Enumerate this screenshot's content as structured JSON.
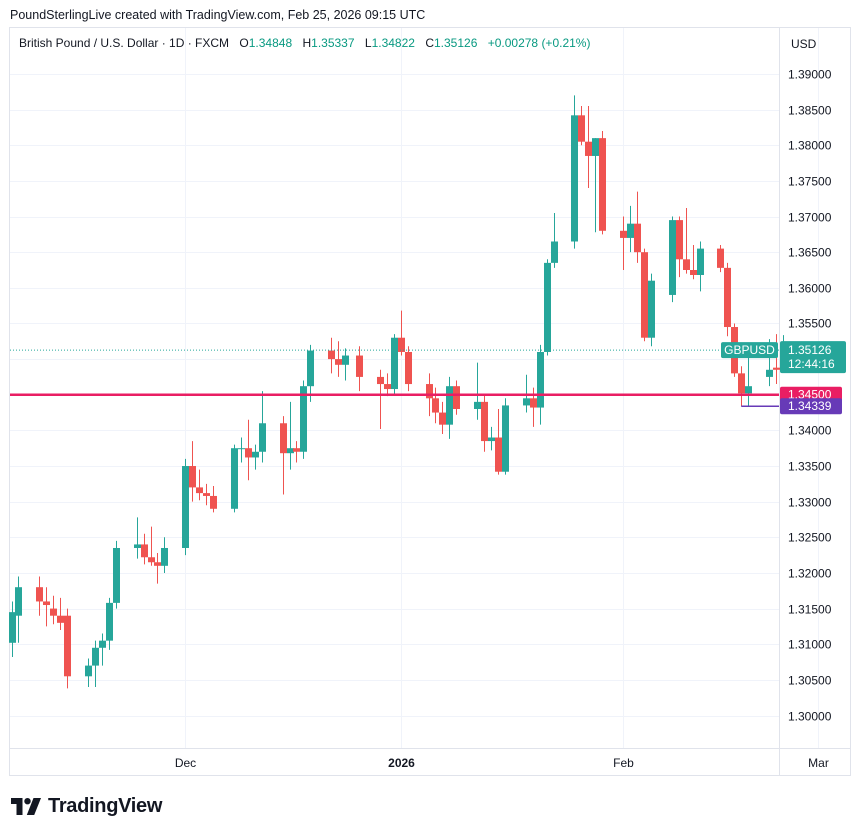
{
  "credit": "PoundSterlingLive created with TradingView.com, Feb 25, 2026 09:15 UTC",
  "legend": {
    "symbol": "British Pound / U.S. Dollar · 1D · FXCM",
    "open_label": "O",
    "open": "1.34848",
    "high_label": "H",
    "high": "1.35337",
    "low_label": "L",
    "low": "1.34822",
    "close_label": "C",
    "close": "1.35126",
    "change": "+0.00278 (+0.21%)"
  },
  "currency": "USD",
  "brand": "TradingView",
  "colors": {
    "up": "#26a69a",
    "down": "#ef5350",
    "support": "#e91e63",
    "low_line": "#673ab7",
    "grid": "#f0f3fa"
  },
  "chart_data": {
    "type": "candlestick",
    "symbol": "GBPUSD",
    "ylim": [
      1.295,
      1.3925
    ],
    "y_ticks": [
      "1.30000",
      "1.30500",
      "1.31000",
      "1.31500",
      "1.32000",
      "1.32500",
      "1.33000",
      "1.33500",
      "1.34000",
      "1.34500",
      "1.35000",
      "1.35500",
      "1.36000",
      "1.36500",
      "1.37000",
      "1.37500",
      "1.38000",
      "1.38500",
      "1.39000"
    ],
    "x_ticks": [
      {
        "label": "Dec",
        "date": "2025-12-01",
        "bold": false
      },
      {
        "label": "2026",
        "date": "2026-01-01",
        "bold": true
      },
      {
        "label": "Feb",
        "date": "2026-02-02",
        "bold": false
      },
      {
        "label": "Mar",
        "date": "2026-03-02",
        "bold": false
      }
    ],
    "candles": [
      {
        "date": "2025-11-06",
        "open": 1.3102,
        "high": 1.316,
        "low": 1.3082,
        "close": 1.3145
      },
      {
        "date": "2025-11-07",
        "open": 1.314,
        "high": 1.3195,
        "low": 1.3102,
        "close": 1.318
      },
      {
        "date": "2025-11-10",
        "open": 1.318,
        "high": 1.3195,
        "low": 1.314,
        "close": 1.316
      },
      {
        "date": "2025-11-11",
        "open": 1.316,
        "high": 1.318,
        "low": 1.3125,
        "close": 1.3155
      },
      {
        "date": "2025-11-12",
        "open": 1.315,
        "high": 1.3168,
        "low": 1.3128,
        "close": 1.314
      },
      {
        "date": "2025-11-13",
        "open": 1.314,
        "high": 1.3165,
        "low": 1.312,
        "close": 1.313
      },
      {
        "date": "2025-11-14",
        "open": 1.314,
        "high": 1.315,
        "low": 1.3038,
        "close": 1.3055
      },
      {
        "date": "2025-11-17",
        "open": 1.3055,
        "high": 1.308,
        "low": 1.304,
        "close": 1.307
      },
      {
        "date": "2025-11-18",
        "open": 1.307,
        "high": 1.3105,
        "low": 1.304,
        "close": 1.3095
      },
      {
        "date": "2025-11-19",
        "open": 1.3095,
        "high": 1.3115,
        "low": 1.307,
        "close": 1.3105
      },
      {
        "date": "2025-11-20",
        "open": 1.3105,
        "high": 1.3165,
        "low": 1.3092,
        "close": 1.3158
      },
      {
        "date": "2025-11-21",
        "open": 1.3158,
        "high": 1.3245,
        "low": 1.315,
        "close": 1.3235
      },
      {
        "date": "2025-11-24",
        "open": 1.3235,
        "high": 1.3278,
        "low": 1.322,
        "close": 1.324
      },
      {
        "date": "2025-11-25",
        "open": 1.324,
        "high": 1.3255,
        "low": 1.3212,
        "close": 1.3222
      },
      {
        "date": "2025-11-26",
        "open": 1.3222,
        "high": 1.3265,
        "low": 1.321,
        "close": 1.3215
      },
      {
        "date": "2025-11-27",
        "open": 1.3215,
        "high": 1.3228,
        "low": 1.3185,
        "close": 1.321
      },
      {
        "date": "2025-11-28",
        "open": 1.321,
        "high": 1.325,
        "low": 1.32,
        "close": 1.3235
      },
      {
        "date": "2025-12-01",
        "open": 1.3235,
        "high": 1.336,
        "low": 1.3225,
        "close": 1.335
      },
      {
        "date": "2025-12-02",
        "open": 1.335,
        "high": 1.3385,
        "low": 1.33,
        "close": 1.332
      },
      {
        "date": "2025-12-03",
        "open": 1.332,
        "high": 1.3345,
        "low": 1.3302,
        "close": 1.3312
      },
      {
        "date": "2025-12-04",
        "open": 1.3312,
        "high": 1.3325,
        "low": 1.3295,
        "close": 1.3308
      },
      {
        "date": "2025-12-05",
        "open": 1.3308,
        "high": 1.3322,
        "low": 1.3285,
        "close": 1.329
      },
      {
        "date": "2025-12-08",
        "open": 1.329,
        "high": 1.338,
        "low": 1.3285,
        "close": 1.3375
      },
      {
        "date": "2025-12-09",
        "open": 1.3375,
        "high": 1.339,
        "low": 1.3355,
        "close": 1.3375
      },
      {
        "date": "2025-12-10",
        "open": 1.3375,
        "high": 1.3415,
        "low": 1.333,
        "close": 1.3362
      },
      {
        "date": "2025-12-11",
        "open": 1.3362,
        "high": 1.338,
        "low": 1.3345,
        "close": 1.337
      },
      {
        "date": "2025-12-12",
        "open": 1.337,
        "high": 1.3455,
        "low": 1.3355,
        "close": 1.341
      },
      {
        "date": "2025-12-15",
        "open": 1.341,
        "high": 1.342,
        "low": 1.331,
        "close": 1.3368
      },
      {
        "date": "2025-12-16",
        "open": 1.3368,
        "high": 1.344,
        "low": 1.3345,
        "close": 1.3375
      },
      {
        "date": "2025-12-17",
        "open": 1.3375,
        "high": 1.3385,
        "low": 1.3355,
        "close": 1.337
      },
      {
        "date": "2025-12-18",
        "open": 1.337,
        "high": 1.347,
        "low": 1.336,
        "close": 1.3462
      },
      {
        "date": "2025-12-19",
        "open": 1.3462,
        "high": 1.352,
        "low": 1.344,
        "close": 1.3512
      },
      {
        "date": "2025-12-22",
        "open": 1.3512,
        "high": 1.353,
        "low": 1.348,
        "close": 1.35
      },
      {
        "date": "2025-12-23",
        "open": 1.35,
        "high": 1.3525,
        "low": 1.3475,
        "close": 1.3492
      },
      {
        "date": "2025-12-24",
        "open": 1.3492,
        "high": 1.3515,
        "low": 1.347,
        "close": 1.3505
      },
      {
        "date": "2025-12-26",
        "open": 1.3505,
        "high": 1.3518,
        "low": 1.3455,
        "close": 1.3475
      },
      {
        "date": "2025-12-29",
        "open": 1.3475,
        "high": 1.3485,
        "low": 1.3402,
        "close": 1.3465
      },
      {
        "date": "2025-12-30",
        "open": 1.3465,
        "high": 1.348,
        "low": 1.3448,
        "close": 1.3458
      },
      {
        "date": "2025-12-31",
        "open": 1.3458,
        "high": 1.3535,
        "low": 1.345,
        "close": 1.353
      },
      {
        "date": "2026-01-01",
        "open": 1.353,
        "high": 1.3568,
        "low": 1.3505,
        "close": 1.351
      },
      {
        "date": "2026-01-02",
        "open": 1.351,
        "high": 1.3518,
        "low": 1.3455,
        "close": 1.3465
      },
      {
        "date": "2026-01-05",
        "open": 1.3465,
        "high": 1.348,
        "low": 1.342,
        "close": 1.3445
      },
      {
        "date": "2026-01-06",
        "open": 1.3445,
        "high": 1.346,
        "low": 1.341,
        "close": 1.3425
      },
      {
        "date": "2026-01-07",
        "open": 1.3425,
        "high": 1.344,
        "low": 1.3395,
        "close": 1.3408
      },
      {
        "date": "2026-01-08",
        "open": 1.3408,
        "high": 1.3475,
        "low": 1.3388,
        "close": 1.3462
      },
      {
        "date": "2026-01-09",
        "open": 1.3462,
        "high": 1.347,
        "low": 1.3422,
        "close": 1.343
      },
      {
        "date": "2026-01-12",
        "open": 1.343,
        "high": 1.3495,
        "low": 1.3415,
        "close": 1.344
      },
      {
        "date": "2026-01-13",
        "open": 1.344,
        "high": 1.345,
        "low": 1.337,
        "close": 1.3385
      },
      {
        "date": "2026-01-14",
        "open": 1.3385,
        "high": 1.3405,
        "low": 1.3372,
        "close": 1.339
      },
      {
        "date": "2026-01-15",
        "open": 1.339,
        "high": 1.343,
        "low": 1.3338,
        "close": 1.3342
      },
      {
        "date": "2026-01-16",
        "open": 1.3342,
        "high": 1.3445,
        "low": 1.3338,
        "close": 1.3435
      },
      {
        "date": "2026-01-19",
        "open": 1.3435,
        "high": 1.3478,
        "low": 1.3425,
        "close": 1.3445
      },
      {
        "date": "2026-01-20",
        "open": 1.3445,
        "high": 1.346,
        "low": 1.3405,
        "close": 1.3432
      },
      {
        "date": "2026-01-21",
        "open": 1.3432,
        "high": 1.352,
        "low": 1.3408,
        "close": 1.351
      },
      {
        "date": "2026-01-22",
        "open": 1.351,
        "high": 1.364,
        "low": 1.3505,
        "close": 1.3635
      },
      {
        "date": "2026-01-23",
        "open": 1.3635,
        "high": 1.3705,
        "low": 1.3628,
        "close": 1.3665
      },
      {
        "date": "2026-01-26",
        "open": 1.3665,
        "high": 1.387,
        "low": 1.3655,
        "close": 1.3842
      },
      {
        "date": "2026-01-27",
        "open": 1.3842,
        "high": 1.3855,
        "low": 1.38,
        "close": 1.3805
      },
      {
        "date": "2026-01-28",
        "open": 1.3805,
        "high": 1.3855,
        "low": 1.374,
        "close": 1.3785
      },
      {
        "date": "2026-01-29",
        "open": 1.3785,
        "high": 1.381,
        "low": 1.3678,
        "close": 1.381
      },
      {
        "date": "2026-01-30",
        "open": 1.381,
        "high": 1.382,
        "low": 1.3675,
        "close": 1.368
      },
      {
        "date": "2026-02-02",
        "open": 1.368,
        "high": 1.37,
        "low": 1.3625,
        "close": 1.367
      },
      {
        "date": "2026-02-03",
        "open": 1.367,
        "high": 1.3715,
        "low": 1.365,
        "close": 1.369
      },
      {
        "date": "2026-02-04",
        "open": 1.369,
        "high": 1.3735,
        "low": 1.3635,
        "close": 1.365
      },
      {
        "date": "2026-02-05",
        "open": 1.365,
        "high": 1.3655,
        "low": 1.3525,
        "close": 1.353
      },
      {
        "date": "2026-02-06",
        "open": 1.353,
        "high": 1.362,
        "low": 1.3518,
        "close": 1.361
      },
      {
        "date": "2026-02-09",
        "open": 1.359,
        "high": 1.37,
        "low": 1.358,
        "close": 1.3695
      },
      {
        "date": "2026-02-10",
        "open": 1.3695,
        "high": 1.37,
        "low": 1.3615,
        "close": 1.364
      },
      {
        "date": "2026-02-11",
        "open": 1.364,
        "high": 1.3712,
        "low": 1.362,
        "close": 1.3625
      },
      {
        "date": "2026-02-12",
        "open": 1.3625,
        "high": 1.366,
        "low": 1.3612,
        "close": 1.3618
      },
      {
        "date": "2026-02-13",
        "open": 1.3618,
        "high": 1.3665,
        "low": 1.3595,
        "close": 1.3655
      },
      {
        "date": "2026-02-16",
        "open": 1.3655,
        "high": 1.366,
        "low": 1.3622,
        "close": 1.3628
      },
      {
        "date": "2026-02-17",
        "open": 1.3628,
        "high": 1.3635,
        "low": 1.3532,
        "close": 1.3545
      },
      {
        "date": "2026-02-18",
        "open": 1.3545,
        "high": 1.355,
        "low": 1.3475,
        "close": 1.348
      },
      {
        "date": "2026-02-19",
        "open": 1.348,
        "high": 1.349,
        "low": 1.3434,
        "close": 1.3452
      },
      {
        "date": "2026-02-20",
        "open": 1.3452,
        "high": 1.3518,
        "low": 1.3434,
        "close": 1.3462
      },
      {
        "date": "2026-02-23",
        "open": 1.3475,
        "high": 1.3528,
        "low": 1.3462,
        "close": 1.3485
      },
      {
        "date": "2026-02-24",
        "open": 1.3488,
        "high": 1.3535,
        "low": 1.3465,
        "close": 1.3485
      },
      {
        "date": "2026-02-25",
        "open": 1.34848,
        "high": 1.35337,
        "low": 1.34822,
        "close": 1.35126
      }
    ],
    "price_line": {
      "label": "GBPUSD",
      "value": "1.35126",
      "countdown": "12:44:16"
    },
    "support_line": {
      "value": "1.34500"
    },
    "low_marker": {
      "value": "1.34339",
      "from_date": "2026-02-19"
    }
  }
}
